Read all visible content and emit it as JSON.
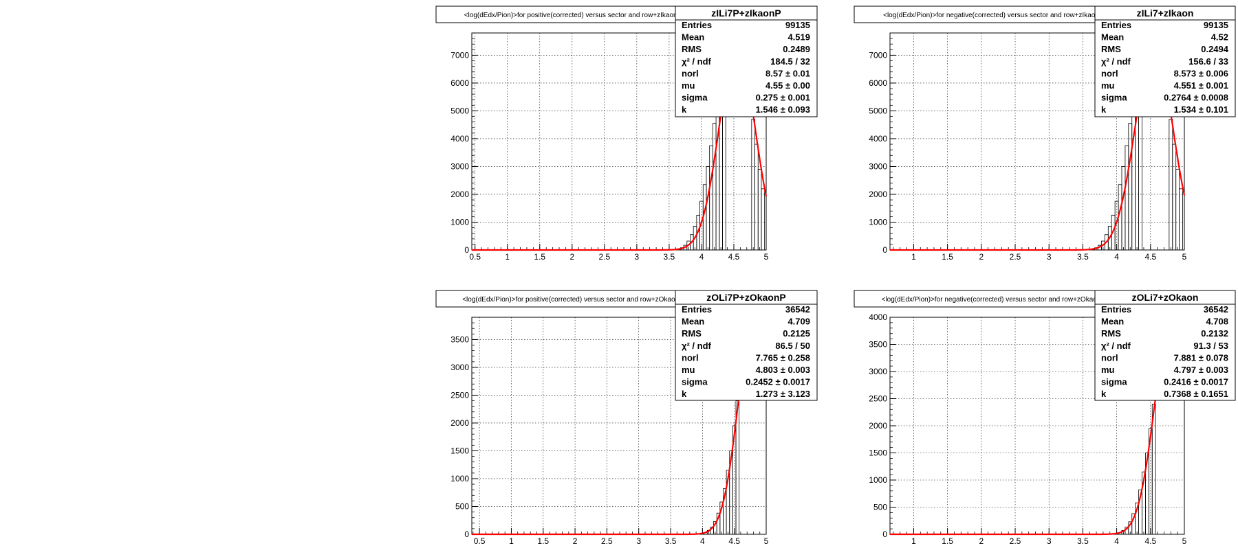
{
  "chart_data": [
    {
      "type": "histogram",
      "title": "<log(dEdx/Pion)>for positive(corrected) versus sector and row+zIkaonP",
      "xlabel": "",
      "ylabel": "",
      "xlim": [
        0.45,
        5.0
      ],
      "ylim": [
        0,
        7800
      ],
      "xticks": [
        0.5,
        1,
        1.5,
        2,
        2.5,
        3,
        3.5,
        4,
        4.5,
        5
      ],
      "yticks": [
        0,
        1000,
        2000,
        3000,
        4000,
        5000,
        6000,
        7000
      ],
      "grid": true,
      "fit": {
        "mu": 4.55,
        "sigma": 0.275,
        "amp": 7350
      },
      "hist": {
        "x": [
          3.6,
          3.65,
          3.7,
          3.75,
          3.8,
          3.85,
          3.9,
          3.95,
          4.0,
          4.05,
          4.1,
          4.15,
          4.2,
          4.25,
          4.3,
          4.35,
          4.8,
          4.85,
          4.9,
          4.95
        ],
        "y": [
          10,
          30,
          80,
          170,
          320,
          550,
          850,
          1250,
          1750,
          2350,
          3000,
          3750,
          4550,
          5350,
          6150,
          6850,
          4700,
          3800,
          2900,
          2200
        ]
      },
      "stats": {
        "name": "zILi7P+zIkaonP",
        "rows": [
          {
            "label": "Entries",
            "value": "99135"
          },
          {
            "label": "Mean",
            "value": "4.519"
          },
          {
            "label": "RMS",
            "value": "0.2489"
          },
          {
            "label": "χ² / ndf",
            "value": "184.5 / 32"
          },
          {
            "label": "norl",
            "value": "8.57 ± 0.01"
          },
          {
            "label": "mu",
            "value": "4.55 ± 0.00"
          },
          {
            "label": "sigma",
            "value": "0.275 ± 0.001"
          },
          {
            "label": "k",
            "value": "1.546 ± 0.093"
          }
        ]
      }
    },
    {
      "type": "histogram",
      "title": "<log(dEdx/Pion)>for negative(corrected) versus sector and row+zIkaon",
      "xlabel": "",
      "ylabel": "",
      "xlim": [
        0.65,
        5.0
      ],
      "ylim": [
        0,
        7800
      ],
      "xticks": [
        1,
        1.5,
        2,
        2.5,
        3,
        3.5,
        4,
        4.5,
        5
      ],
      "yticks": [
        0,
        1000,
        2000,
        3000,
        4000,
        5000,
        6000,
        7000
      ],
      "grid": true,
      "fit": {
        "mu": 4.551,
        "sigma": 0.2764,
        "amp": 7350
      },
      "hist": {
        "x": [
          3.6,
          3.65,
          3.7,
          3.75,
          3.8,
          3.85,
          3.9,
          3.95,
          4.0,
          4.05,
          4.1,
          4.15,
          4.2,
          4.25,
          4.3,
          4.35,
          4.8,
          4.85,
          4.9,
          4.95
        ],
        "y": [
          10,
          30,
          80,
          170,
          320,
          550,
          850,
          1250,
          1750,
          2350,
          3000,
          3750,
          4550,
          5350,
          6150,
          6850,
          4700,
          3800,
          2900,
          2200
        ]
      },
      "stats": {
        "name": "zILi7+zIkaon",
        "rows": [
          {
            "label": "Entries",
            "value": "99135"
          },
          {
            "label": "Mean",
            "value": "4.52"
          },
          {
            "label": "RMS",
            "value": "0.2494"
          },
          {
            "label": "χ² / ndf",
            "value": "156.6 / 33"
          },
          {
            "label": "norl",
            "value": "8.573 ± 0.006"
          },
          {
            "label": "mu",
            "value": "4.551 ± 0.001"
          },
          {
            "label": "sigma",
            "value": "0.2764 ± 0.0008"
          },
          {
            "label": "k",
            "value": "1.534 ± 0.101"
          }
        ]
      }
    },
    {
      "type": "histogram",
      "title": "<log(dEdx/Pion)>for positive(corrected) versus sector and row+zOkaonP",
      "xlabel": "",
      "ylabel": "",
      "xlim": [
        0.38,
        5.0
      ],
      "ylim": [
        0,
        3900
      ],
      "xticks": [
        0.5,
        1,
        1.5,
        2,
        2.5,
        3,
        3.5,
        4,
        4.5,
        5
      ],
      "yticks": [
        0,
        500,
        1000,
        1500,
        2000,
        2500,
        3000,
        3500
      ],
      "grid": true,
      "fit": {
        "mu": 4.803,
        "sigma": 0.2452,
        "amp": 3850
      },
      "hist": {
        "x": [
          4.0,
          4.05,
          4.1,
          4.15,
          4.2,
          4.25,
          4.3,
          4.35,
          4.4,
          4.45,
          4.5,
          4.55
        ],
        "y": [
          10,
          30,
          70,
          130,
          230,
          380,
          580,
          820,
          1150,
          1500,
          1950,
          2400
        ]
      },
      "stats": {
        "name": "zOLi7P+zOkaonP",
        "rows": [
          {
            "label": "Entries",
            "value": "36542"
          },
          {
            "label": "Mean",
            "value": "4.709"
          },
          {
            "label": "RMS",
            "value": "0.2125"
          },
          {
            "label": "χ² / ndf",
            "value": "86.5 / 50"
          },
          {
            "label": "norl",
            "value": "7.765 ± 0.258"
          },
          {
            "label": "mu",
            "value": "4.803 ± 0.003"
          },
          {
            "label": "sigma",
            "value": "0.2452 ± 0.0017"
          },
          {
            "label": "k",
            "value": "1.273 ± 3.123"
          }
        ]
      }
    },
    {
      "type": "histogram",
      "title": "<log(dEdx/Pion)>for negative(corrected) versus sector and row+zOkaon",
      "xlabel": "",
      "ylabel": "",
      "xlim": [
        0.65,
        5.0
      ],
      "ylim": [
        0,
        4000
      ],
      "xticks": [
        1,
        1.5,
        2,
        2.5,
        3,
        3.5,
        4,
        4.5,
        5
      ],
      "yticks": [
        0,
        500,
        1000,
        1500,
        2000,
        2500,
        3000,
        3500,
        4000
      ],
      "grid": true,
      "fit": {
        "mu": 4.797,
        "sigma": 0.2416,
        "amp": 3850
      },
      "hist": {
        "x": [
          4.0,
          4.05,
          4.1,
          4.15,
          4.2,
          4.25,
          4.3,
          4.35,
          4.4,
          4.45,
          4.5,
          4.55
        ],
        "y": [
          10,
          30,
          70,
          130,
          230,
          380,
          580,
          820,
          1150,
          1500,
          1950,
          2400
        ]
      },
      "stats": {
        "name": "zOLi7+zOkaon",
        "rows": [
          {
            "label": "Entries",
            "value": "36542"
          },
          {
            "label": "Mean",
            "value": "4.708"
          },
          {
            "label": "RMS",
            "value": "0.2132"
          },
          {
            "label": "χ² / ndf",
            "value": "91.3 / 53"
          },
          {
            "label": "norl",
            "value": "7.881 ± 0.078"
          },
          {
            "label": "mu",
            "value": "4.797 ± 0.003"
          },
          {
            "label": "sigma",
            "value": "0.2416 ± 0.0017"
          },
          {
            "label": "k",
            "value": "0.7368 ± 0.1651"
          }
        ]
      }
    }
  ],
  "colors": {
    "fit": "#ff0000",
    "hist": "#000000",
    "grid": "#000000",
    "frame": "#000000"
  }
}
